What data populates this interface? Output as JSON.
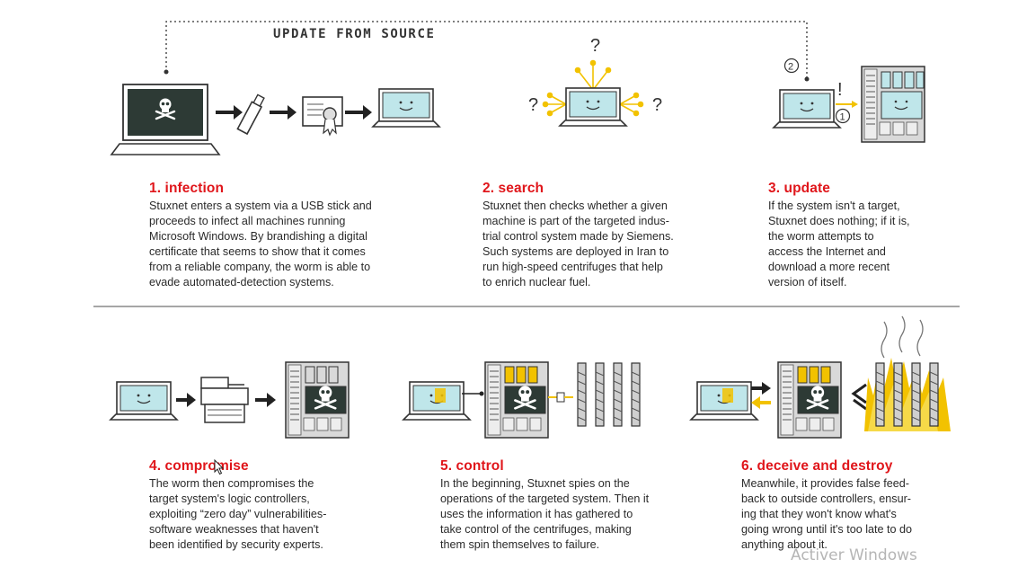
{
  "diagram": {
    "update_label": "UPDATE FROM SOURCE",
    "markers": {
      "q1": "?",
      "q2": "?",
      "q3": "?",
      "exclaim": "!",
      "n1": "1",
      "n2": "2"
    },
    "colors": {
      "accent_red": "#e0161b",
      "accent_yellow": "#f2c200",
      "screen_dark": "#2d3a35",
      "screen_light": "#bfe6ea"
    }
  },
  "steps": [
    {
      "title": "1. infection",
      "lines": [
        "Stuxnet enters a system via a USB stick and",
        "proceeds to infect all machines running",
        "Microsoft Windows. By brandishing a digital",
        "certificate that seems to show that it comes",
        "from a reliable company, the worm is able to",
        "evade automated-detection systems."
      ]
    },
    {
      "title": "2. search",
      "lines": [
        "Stuxnet then checks whether a given",
        "machine is part of the targeted indus-",
        "trial control system made by Siemens.",
        "Such systems are deployed in Iran to",
        "run high-speed centrifuges that help",
        "to enrich nuclear fuel."
      ]
    },
    {
      "title": "3. update",
      "lines": [
        "If the system isn't a target,",
        "Stuxnet does nothing; if it is,",
        "the worm attempts to",
        "access the Internet and",
        "download a more recent",
        "version of itself."
      ]
    },
    {
      "title": "4. compromise",
      "lines": [
        "The worm then compromises the",
        "target system's logic controllers,",
        "exploiting “zero day” vulnerabilities-",
        "software weaknesses that haven't",
        "been identified by security experts."
      ]
    },
    {
      "title": "5. control",
      "lines": [
        "In the beginning, Stuxnet spies on the",
        "operations of the targeted system. Then it",
        "uses the information it has gathered to",
        "take control of the centrifuges, making",
        "them spin themselves to failure."
      ]
    },
    {
      "title": "6. deceive and destroy",
      "lines": [
        "Meanwhile, it provides false feed-",
        "back to outside controllers, ensur-",
        "ing that they won't know what's",
        "going wrong until it's too late to do",
        "anything about it."
      ]
    }
  ],
  "watermark": "Activer Windows"
}
